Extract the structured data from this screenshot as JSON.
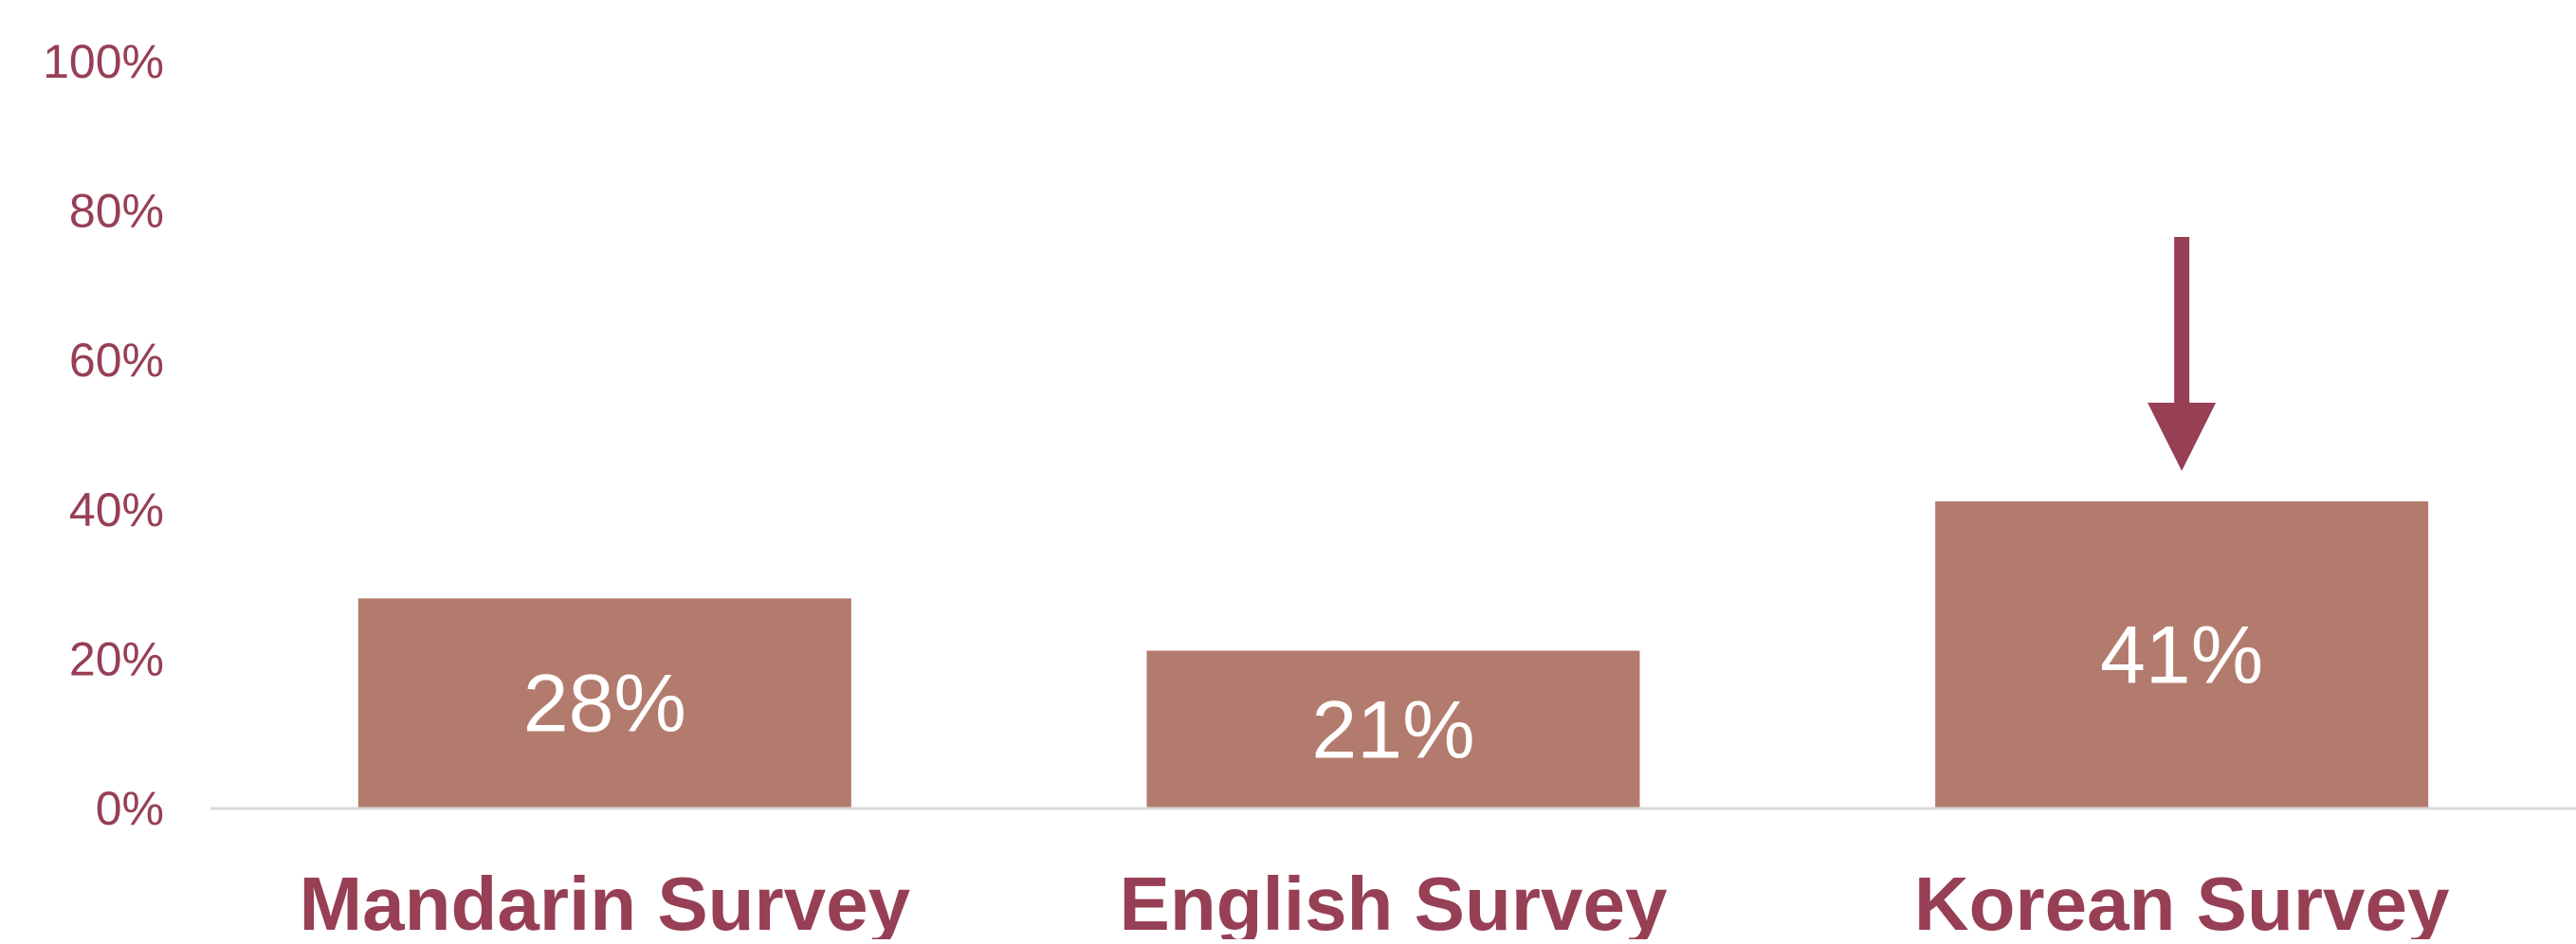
{
  "chart_data": {
    "type": "bar",
    "categories": [
      "Mandarin Survey",
      "English Survey",
      "Korean Survey"
    ],
    "values": [
      28,
      21,
      41
    ],
    "data_labels": [
      "28%",
      "21%",
      "41%"
    ],
    "title": "",
    "xlabel": "",
    "ylabel": "",
    "ylim": [
      0,
      100
    ],
    "yticks": [
      0,
      20,
      40,
      60,
      80,
      100
    ],
    "ytick_labels": [
      "0%",
      "20%",
      "40%",
      "60%",
      "80%",
      "100%"
    ],
    "grid": false,
    "legend": "none",
    "highlight_index": 2,
    "annotation": "downward arrow pointing at Korean Survey bar"
  },
  "colors": {
    "bar": "#b37b6d",
    "accent": "#973f54",
    "axis_line": "#d9d9d9",
    "data_label": "#ffffff"
  }
}
